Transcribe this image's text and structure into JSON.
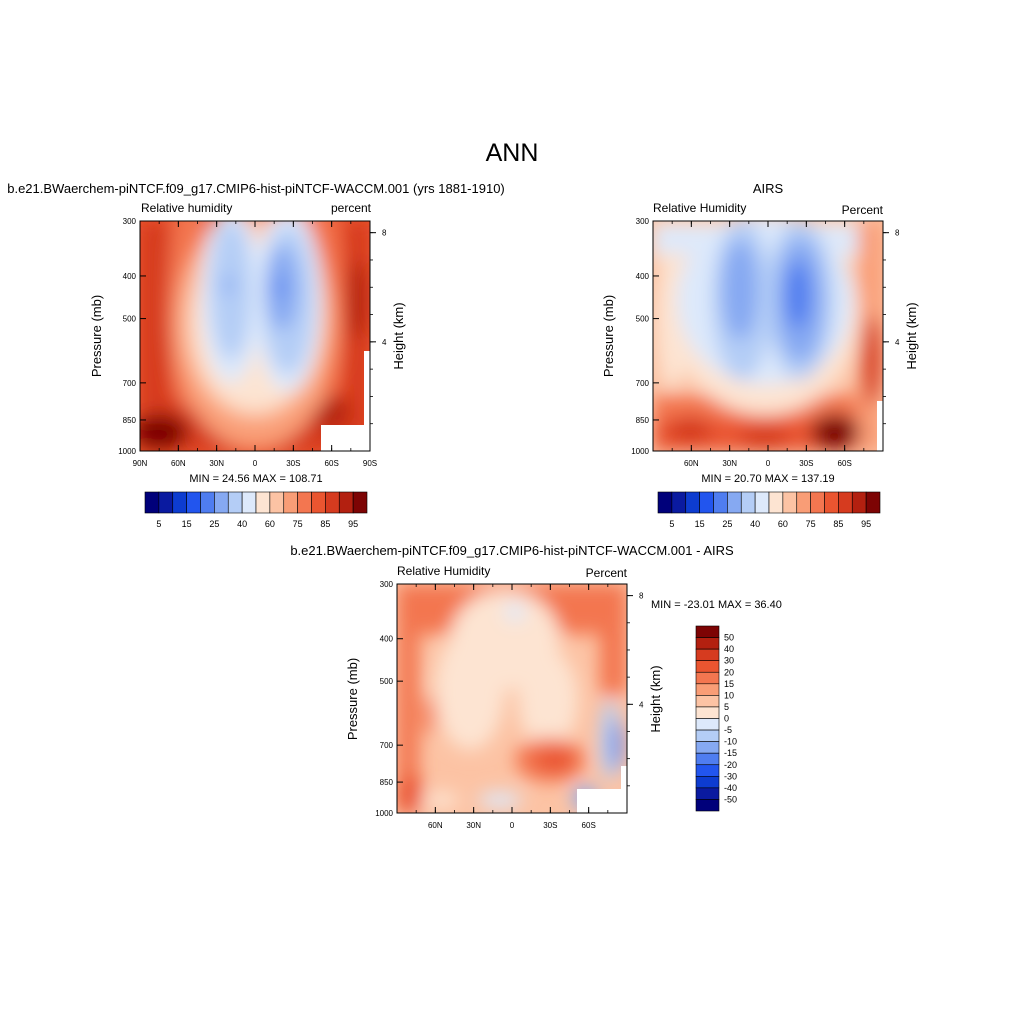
{
  "page": {
    "title": "ANN"
  },
  "colors": {
    "rh_colorbar": [
      "#00007a",
      "#0a1aa0",
      "#0d3cd0",
      "#2255ee",
      "#4f7df0",
      "#86a9f2",
      "#b4cdf6",
      "#dde9fb",
      "#fde4d2",
      "#fcc3a4",
      "#f99d76",
      "#f37650",
      "#ea5530",
      "#d63b1f",
      "#b32010",
      "#7d0404"
    ],
    "diff_colorbar": [
      "#00007a",
      "#0a1aa0",
      "#0d3cd0",
      "#2255ee",
      "#4f7df0",
      "#86a9f2",
      "#b4cdf6",
      "#dde9fb",
      "#fde4d2",
      "#fcc3a4",
      "#f99d76",
      "#f37650",
      "#ea5530",
      "#d63b1f",
      "#b32010",
      "#7d0404"
    ]
  },
  "chart_data": [
    {
      "type": "heatmap",
      "title": "b.e21.BWaerchem-piNTCF.f09_g17.CMIP6-hist-piNTCF-WACCM.001 (yrs 1881-1910)",
      "left_string": "Relative humidity",
      "right_string": "percent",
      "ylabel": "Pressure (mb)",
      "ylabel_right": "Height (km)",
      "x_ticklabels": [
        "90N",
        "60N",
        "30N",
        "0",
        "30S",
        "60S",
        "90S"
      ],
      "x_values": [
        90,
        60,
        30,
        0,
        -30,
        -60,
        -90
      ],
      "y_ticklabels": [
        "300",
        "400",
        "500",
        "700",
        "850",
        "1000"
      ],
      "y_values": [
        300,
        400,
        500,
        700,
        850,
        1000
      ],
      "y_right_ticklabels": [
        "8",
        "4"
      ],
      "xlim": [
        90,
        -90
      ],
      "ylim": [
        1000,
        300
      ],
      "ylog": true,
      "min_max": "MIN =  24.56  MAX = 108.71",
      "min": 24.56,
      "max": 108.71,
      "colorbar_labels": [
        "5",
        "15",
        "25",
        "40",
        "60",
        "75",
        "85",
        "95"
      ]
    },
    {
      "type": "heatmap",
      "title": "AIRS",
      "left_string": "Relative Humidity",
      "right_string": "Percent",
      "ylabel": "Pressure (mb)",
      "ylabel_right": "Height (km)",
      "x_ticklabels": [
        "60N",
        "30N",
        "0",
        "30S",
        "60S"
      ],
      "x_values": [
        60,
        30,
        0,
        -30,
        -60
      ],
      "y_ticklabels": [
        "300",
        "400",
        "500",
        "700",
        "850",
        "1000"
      ],
      "y_values": [
        300,
        400,
        500,
        700,
        850,
        1000
      ],
      "y_right_ticklabels": [
        "8",
        "4"
      ],
      "xlim": [
        90,
        -90
      ],
      "ylim": [
        1000,
        300
      ],
      "ylog": true,
      "min_max": "MIN =  20.70  MAX = 137.19",
      "min": 20.7,
      "max": 137.19,
      "colorbar_labels": [
        "5",
        "15",
        "25",
        "40",
        "60",
        "75",
        "85",
        "95"
      ]
    },
    {
      "type": "heatmap",
      "title": "b.e21.BWaerchem-piNTCF.f09_g17.CMIP6-hist-piNTCF-WACCM.001 - AIRS",
      "left_string": "Relative Humidity",
      "right_string": "Percent",
      "ylabel": "Pressure (mb)",
      "ylabel_right": "Height (km)",
      "x_ticklabels": [
        "60N",
        "30N",
        "0",
        "30S",
        "60S"
      ],
      "x_values": [
        60,
        30,
        0,
        -30,
        -60
      ],
      "y_ticklabels": [
        "300",
        "400",
        "500",
        "700",
        "850",
        "1000"
      ],
      "y_values": [
        300,
        400,
        500,
        700,
        850,
        1000
      ],
      "y_right_ticklabels": [
        "8",
        "4"
      ],
      "xlim": [
        90,
        -90
      ],
      "ylim": [
        1000,
        300
      ],
      "ylog": true,
      "min_max": "MIN = -23.01  MAX =  36.40",
      "min": -23.01,
      "max": 36.4,
      "colorbar_labels": [
        "50",
        "40",
        "30",
        "20",
        "15",
        "10",
        "5",
        "0",
        "-5",
        "-10",
        "-15",
        "-20",
        "-30",
        "-40",
        "-50"
      ]
    }
  ]
}
